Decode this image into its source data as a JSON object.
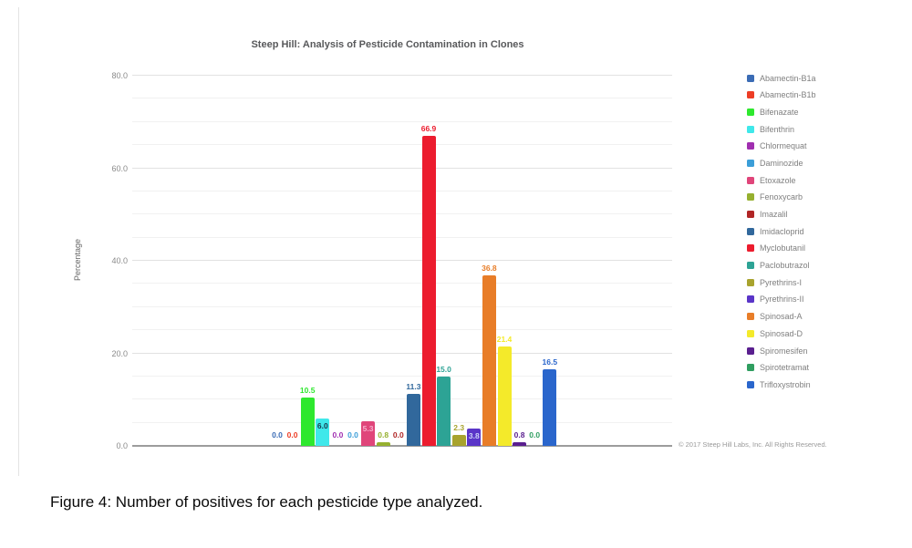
{
  "figure": {
    "caption": "Figure 4: Number of positives for each pesticide type analyzed."
  },
  "chart_data": {
    "type": "bar",
    "title": "Steep Hill: Analysis of Pesticide Contamination in Clones",
    "xlabel": "",
    "ylabel": "Percentage",
    "ylim": [
      0,
      80
    ],
    "y_major_ticks": [
      0,
      20,
      40,
      60,
      80
    ],
    "y_minor_step": 5,
    "grid": true,
    "legend_position": "right",
    "copyright": "© 2017 Steep Hill Labs, Inc. All Rights Reserved.",
    "series": [
      {
        "name": "Abamectin-B1a",
        "value": 0.0,
        "color": "#3b6cb5"
      },
      {
        "name": "Abamectin-B1b",
        "value": 0.0,
        "color": "#ed3d25"
      },
      {
        "name": "Bifenazate",
        "value": 10.5,
        "color": "#2ee82e"
      },
      {
        "name": "Bifenthrin",
        "value": 6.0,
        "color": "#3fe8ea",
        "label_color": "#16384f",
        "label_inside": true
      },
      {
        "name": "Chlormequat",
        "value": 0.0,
        "color": "#a02fb0"
      },
      {
        "name": "Daminozide",
        "value": 0.0,
        "color": "#3b9ed8"
      },
      {
        "name": "Etoxazole",
        "value": 5.3,
        "color": "#e0457a",
        "label_color": "#f6aecb",
        "label_inside": true
      },
      {
        "name": "Fenoxycarb",
        "value": 0.8,
        "color": "#96b02f"
      },
      {
        "name": "Imazalil",
        "value": 0.0,
        "color": "#b02525"
      },
      {
        "name": "Imidacloprid",
        "value": 11.3,
        "color": "#31689c"
      },
      {
        "name": "Myclobutanil",
        "value": 66.9,
        "color": "#ec1c2e"
      },
      {
        "name": "Paclobutrazol",
        "value": 15.0,
        "color": "#2da395"
      },
      {
        "name": "Pyrethrins-I",
        "value": 2.3,
        "color": "#a8a32d"
      },
      {
        "name": "Pyrethrins-II",
        "value": 3.8,
        "color": "#5a35c8",
        "label_color": "#cdd3f8",
        "label_inside": true
      },
      {
        "name": "Spinosad-A",
        "value": 36.8,
        "color": "#e87d28"
      },
      {
        "name": "Spinosad-D",
        "value": 21.4,
        "color": "#f4ea2a"
      },
      {
        "name": "Spiromesifen",
        "value": 0.8,
        "color": "#5a1f8f"
      },
      {
        "name": "Spirotetramat",
        "value": 0.0,
        "color": "#2f9e60"
      },
      {
        "name": "Trifloxystrobin",
        "value": 16.5,
        "color": "#2a66cc"
      }
    ]
  }
}
